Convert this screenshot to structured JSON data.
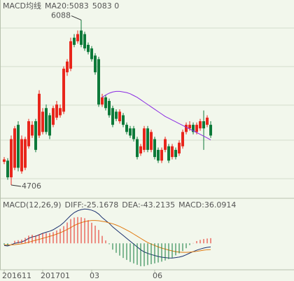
{
  "chart_data": [
    {
      "type": "candlestick",
      "title": "MACD均线",
      "subtitle": "5083 0",
      "ylim": [
        4600,
        6150
      ],
      "up_color": "#e8261c",
      "down_color": "#0e7a3a",
      "open": [
        4900,
        4910,
        4770,
        4850,
        5210,
        4820,
        4850,
        5030,
        5120,
        5240,
        5120,
        5150,
        5350,
        5290,
        5210,
        5270,
        5290,
        5320,
        5650,
        5680,
        5940,
        5910,
        6000,
        5970,
        5880,
        5850,
        5790,
        5760,
        5380,
        5440,
        5410,
        5350,
        5320,
        5240,
        5290,
        5210,
        5180,
        5180,
        5090,
        4970,
        5000,
        5180,
        5000,
        5090,
        5000,
        4910,
        5000,
        5030,
        4940,
        5000,
        4970,
        5030,
        5150,
        5180,
        5210,
        5150,
        5180,
        5240,
        5210,
        5210
      ],
      "high": [
        4940,
        4930,
        5120,
        5200,
        5240,
        5120,
        5110,
        5260,
        5240,
        5260,
        5500,
        5350,
        5380,
        5310,
        5370,
        5410,
        5380,
        5700,
        5760,
        5940,
        5970,
        6000,
        6088,
        5990,
        5900,
        5870,
        5810,
        5780,
        5470,
        5460,
        5430,
        5370,
        5340,
        5340,
        5310,
        5230,
        5200,
        5200,
        5110,
        5050,
        5200,
        5200,
        5170,
        5110,
        5020,
        5020,
        5110,
        5050,
        5050,
        5020,
        5080,
        5170,
        5230,
        5240,
        5230,
        5230,
        5260,
        5330,
        5290,
        5240
      ],
      "low": [
        4880,
        4750,
        4706,
        4830,
        4820,
        4800,
        4830,
        5010,
        5100,
        4980,
        5100,
        5130,
        5130,
        5090,
        5190,
        5250,
        5270,
        5300,
        5620,
        5660,
        5860,
        5890,
        5860,
        5830,
        5800,
        5740,
        5630,
        5360,
        5360,
        5330,
        5270,
        5190,
        5240,
        5220,
        5190,
        5130,
        5100,
        5070,
        4920,
        4950,
        4980,
        4980,
        4980,
        4920,
        4890,
        4890,
        4980,
        4890,
        4920,
        4920,
        4950,
        5010,
        5130,
        5160,
        5130,
        5130,
        5160,
        5000,
        5190,
        5100
      ],
      "close": [
        4920,
        4770,
        5090,
        5180,
        4850,
        5090,
        5090,
        5240,
        5210,
        5000,
        5470,
        5320,
        5150,
        5120,
        5350,
        5380,
        5350,
        5680,
        5740,
        5910,
        5880,
        5970,
        5880,
        5850,
        5820,
        5760,
        5650,
        5380,
        5440,
        5350,
        5290,
        5210,
        5260,
        5320,
        5210,
        5150,
        5120,
        5090,
        4940,
        5030,
        5180,
        5000,
        5150,
        4940,
        4910,
        5000,
        5090,
        4910,
        5030,
        4940,
        5060,
        5150,
        5210,
        5210,
        5150,
        5210,
        5240,
        5180,
        5270,
        5120
      ],
      "series": [
        {
          "name": "MA20:5083",
          "color": "#8a2be2",
          "legend_color": "#c00000",
          "values": [
            null,
            null,
            null,
            null,
            null,
            null,
            null,
            null,
            null,
            null,
            null,
            null,
            null,
            null,
            null,
            null,
            null,
            null,
            null,
            null,
            null,
            null,
            null,
            null,
            null,
            null,
            null,
            null,
            5440,
            5460,
            5475,
            5485,
            5490,
            5490,
            5485,
            5480,
            5470,
            5455,
            5440,
            5420,
            5400,
            5380,
            5360,
            5340,
            5320,
            5300,
            5280,
            5265,
            5250,
            5235,
            5220,
            5205,
            5190,
            5175,
            5160,
            5145,
            5130,
            5115,
            5100,
            5083
          ]
        }
      ],
      "annotations": [
        6088,
        4706
      ]
    },
    {
      "type": "macd",
      "title": "MACD(12,26,9)",
      "ylim": [
        -185,
        315
      ],
      "categories": [
        "201611",
        null,
        null,
        null,
        null,
        null,
        null,
        null,
        null,
        null,
        null,
        "201701",
        null,
        null,
        null,
        null,
        null,
        null,
        null,
        null,
        null,
        null,
        null,
        null,
        null,
        "03",
        null,
        null,
        null,
        null,
        null,
        null,
        null,
        null,
        null,
        null,
        null,
        null,
        null,
        null,
        null,
        null,
        null,
        "06",
        null,
        null,
        null,
        null,
        null,
        null,
        null,
        null,
        null,
        null,
        null,
        null,
        null,
        null,
        null,
        null
      ],
      "series": [
        {
          "name": "DIFF:-25.1678",
          "color": "#1a2f6e",
          "values": [
            -15,
            -18,
            -10,
            0,
            5,
            10,
            20,
            35,
            45,
            50,
            60,
            70,
            78,
            85,
            95,
            110,
            125,
            145,
            170,
            195,
            215,
            228,
            236,
            240,
            238,
            232,
            222,
            205,
            180,
            160,
            140,
            115,
            95,
            75,
            55,
            35,
            15,
            -5,
            -25,
            -45,
            -60,
            -70,
            -78,
            -85,
            -92,
            -97,
            -100,
            -102,
            -103,
            -100,
            -96,
            -90,
            -80,
            -68,
            -58,
            -48,
            -40,
            -33,
            -28,
            -25.1678
          ]
        },
        {
          "name": "DEA:-43.2135",
          "color": "#e07a10",
          "values": [
            -10,
            -11,
            -11,
            -9,
            -6,
            -3,
            1,
            8,
            15,
            22,
            28,
            35,
            42,
            49,
            56,
            65,
            74,
            85,
            97,
            110,
            125,
            136,
            145,
            152,
            157,
            160,
            160,
            158,
            154,
            150,
            143,
            137,
            128,
            118,
            106,
            93,
            80,
            65,
            50,
            35,
            20,
            6,
            -5,
            -15,
            -25,
            -33,
            -40,
            -47,
            -53,
            -58,
            -61,
            -63,
            -63,
            -62,
            -59,
            -56,
            -52,
            -48,
            -45,
            -43.2135
          ]
        },
        {
          "name": "MACD:36.0914",
          "type": "bar",
          "color": "#555555",
          "up_color": "#e8261c",
          "down_color": "#0e7a3a",
          "values": [
            -10,
            -14,
            2,
            18,
            22,
            26,
            38,
            54,
            60,
            56,
            64,
            70,
            72,
            72,
            78,
            90,
            102,
            120,
            146,
            170,
            180,
            184,
            182,
            176,
            162,
            144,
            124,
            94,
            52,
            20,
            -6,
            -44,
            -66,
            -86,
            -102,
            -116,
            -130,
            -140,
            -150,
            -160,
            -160,
            -152,
            -146,
            -140,
            -134,
            -128,
            -120,
            -110,
            -100,
            -84,
            -70,
            -54,
            -34,
            -12,
            2,
            16,
            24,
            30,
            34,
            36.0914
          ]
        }
      ]
    }
  ]
}
